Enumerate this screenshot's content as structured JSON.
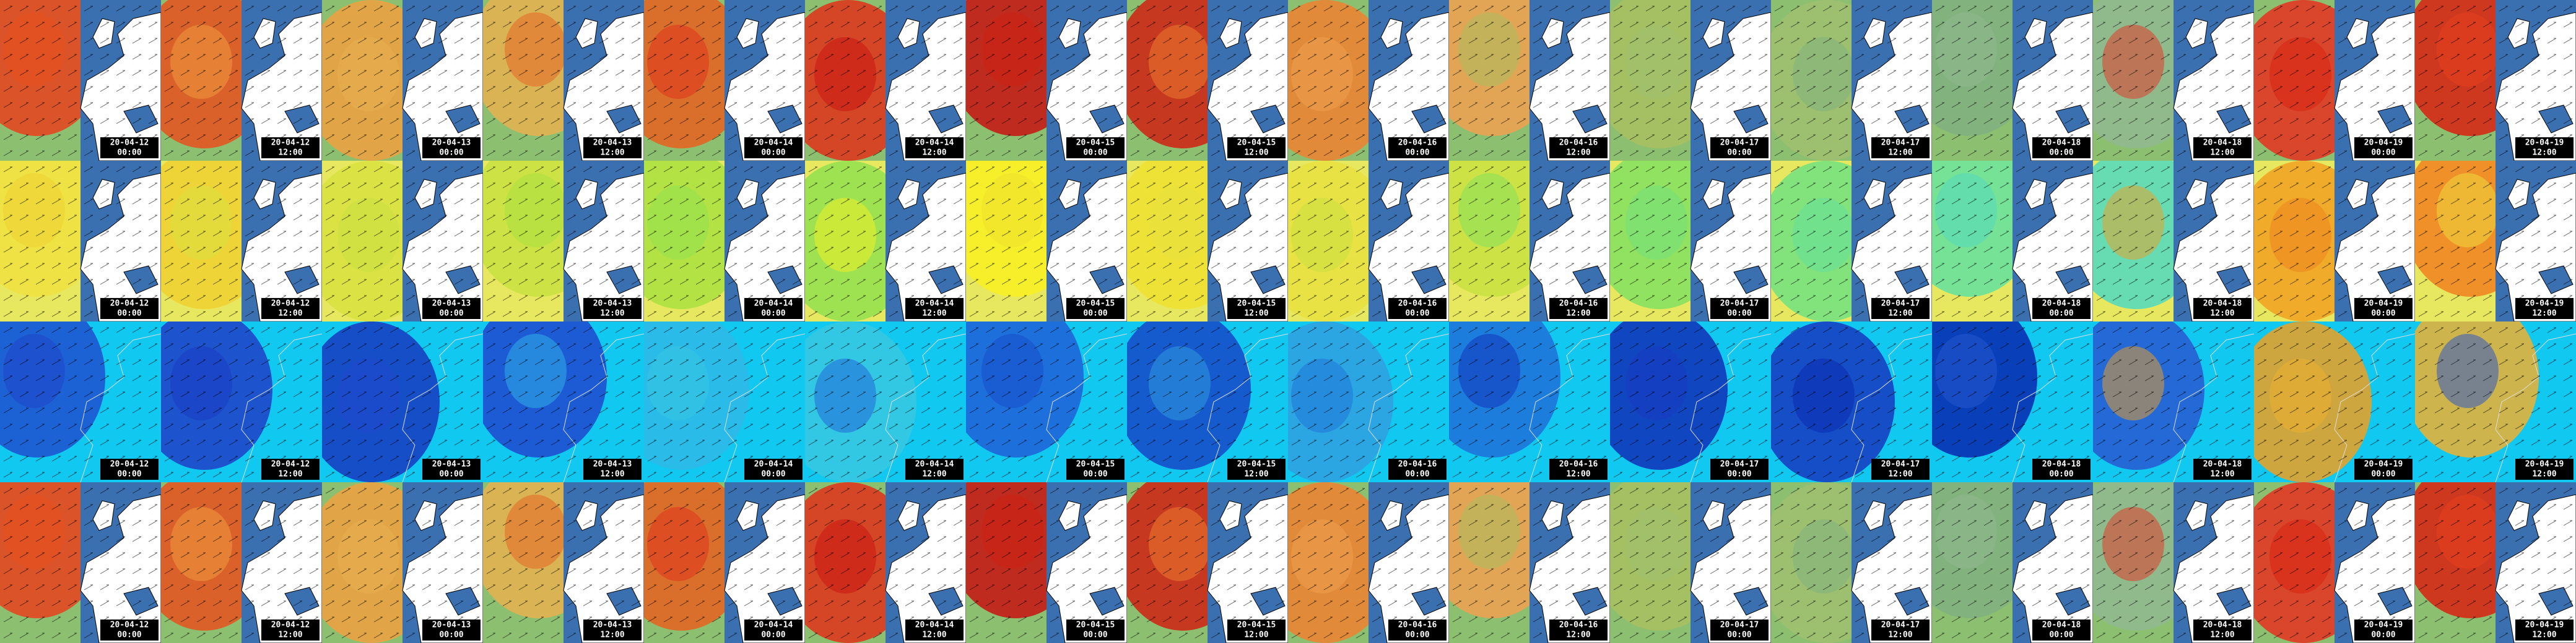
{
  "rows": [
    {
      "tiles": [
        {
          "date": "20-04-12",
          "time": "00:00"
        },
        {
          "date": "20-04-12",
          "time": "12:00"
        },
        {
          "date": "20-04-13",
          "time": "00:00"
        },
        {
          "date": "20-04-13",
          "time": "12:00"
        },
        {
          "date": "20-04-14",
          "time": "00:00"
        },
        {
          "date": "20-04-14",
          "time": "12:00"
        },
        {
          "date": "20-04-15",
          "time": "00:00"
        },
        {
          "date": "20-04-15",
          "time": "12:00"
        },
        {
          "date": "20-04-16",
          "time": "00:00"
        },
        {
          "date": "20-04-16",
          "time": "12:00"
        },
        {
          "date": "20-04-17",
          "time": "00:00"
        },
        {
          "date": "20-04-17",
          "time": "12:00"
        },
        {
          "date": "20-04-18",
          "time": "00:00"
        },
        {
          "date": "20-04-18",
          "time": "12:00"
        },
        {
          "date": "20-04-19",
          "time": "00:00"
        },
        {
          "date": "20-04-19",
          "time": "12:00"
        }
      ]
    },
    {
      "tiles": [
        {
          "date": "20-04-12",
          "time": "00:00"
        },
        {
          "date": "20-04-12",
          "time": "12:00"
        },
        {
          "date": "20-04-13",
          "time": "00:00"
        },
        {
          "date": "20-04-13",
          "time": "12:00"
        },
        {
          "date": "20-04-14",
          "time": "00:00"
        },
        {
          "date": "20-04-14",
          "time": "12:00"
        },
        {
          "date": "20-04-15",
          "time": "00:00"
        },
        {
          "date": "20-04-15",
          "time": "12:00"
        },
        {
          "date": "20-04-16",
          "time": "00:00"
        },
        {
          "date": "20-04-16",
          "time": "12:00"
        },
        {
          "date": "20-04-17",
          "time": "00:00"
        },
        {
          "date": "20-04-17",
          "time": "12:00"
        },
        {
          "date": "20-04-18",
          "time": "00:00"
        },
        {
          "date": "20-04-18",
          "time": "12:00"
        },
        {
          "date": "20-04-19",
          "time": "00:00"
        },
        {
          "date": "20-04-19",
          "time": "12:00"
        }
      ]
    },
    {
      "tiles": [
        {
          "date": "20-04-12",
          "time": "00:00"
        },
        {
          "date": "20-04-12",
          "time": "12:00"
        },
        {
          "date": "20-04-13",
          "time": "00:00"
        },
        {
          "date": "20-04-13",
          "time": "12:00"
        },
        {
          "date": "20-04-14",
          "time": "00:00"
        },
        {
          "date": "20-04-14",
          "time": "12:00"
        },
        {
          "date": "20-04-15",
          "time": "00:00"
        },
        {
          "date": "20-04-15",
          "time": "12:00"
        },
        {
          "date": "20-04-16",
          "time": "00:00"
        },
        {
          "date": "20-04-16",
          "time": "12:00"
        },
        {
          "date": "20-04-17",
          "time": "00:00"
        },
        {
          "date": "20-04-17",
          "time": "12:00"
        },
        {
          "date": "20-04-18",
          "time": "00:00"
        },
        {
          "date": "20-04-18",
          "time": "12:00"
        },
        {
          "date": "20-04-19",
          "time": "00:00"
        },
        {
          "date": "20-04-19",
          "time": "12:00"
        }
      ]
    },
    {
      "tiles": [
        {
          "date": "20-04-12",
          "time": "00:00"
        },
        {
          "date": "20-04-12",
          "time": "12:00"
        },
        {
          "date": "20-04-13",
          "time": "00:00"
        },
        {
          "date": "20-04-13",
          "time": "12:00"
        },
        {
          "date": "20-04-14",
          "time": "00:00"
        },
        {
          "date": "20-04-14",
          "time": "12:00"
        },
        {
          "date": "20-04-15",
          "time": "00:00"
        },
        {
          "date": "20-04-15",
          "time": "12:00"
        },
        {
          "date": "20-04-16",
          "time": "00:00"
        },
        {
          "date": "20-04-16",
          "time": "12:00"
        },
        {
          "date": "20-04-17",
          "time": "00:00"
        },
        {
          "date": "20-04-17",
          "time": "12:00"
        },
        {
          "date": "20-04-18",
          "time": "00:00"
        },
        {
          "date": "20-04-18",
          "time": "12:00"
        },
        {
          "date": "20-04-19",
          "time": "00:00"
        },
        {
          "date": "20-04-19",
          "time": "12:00"
        }
      ]
    }
  ]
}
